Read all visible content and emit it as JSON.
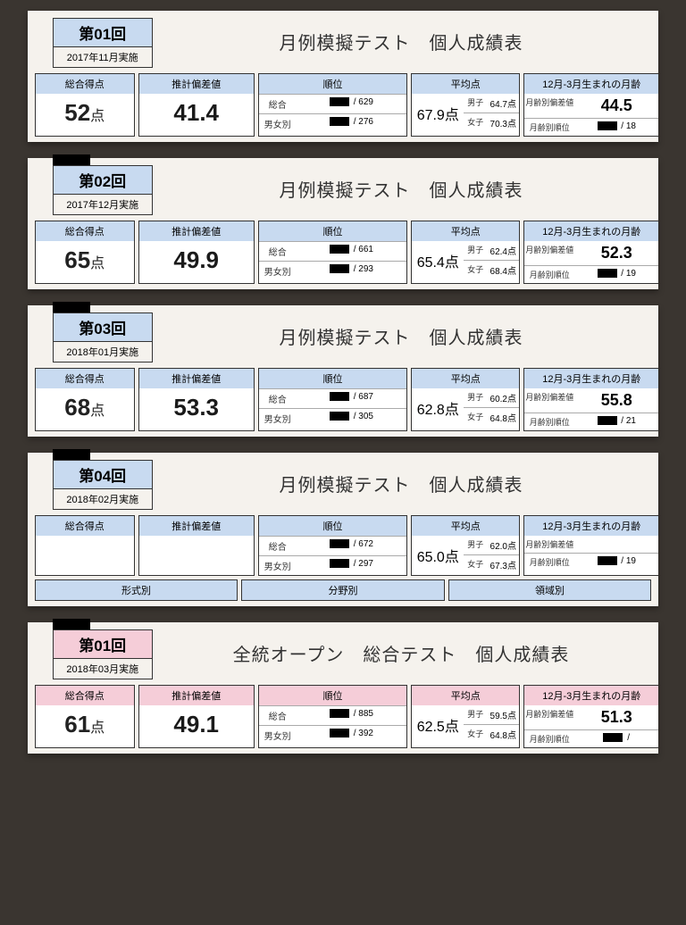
{
  "colors": {
    "blue": "#c8daf0",
    "pink": "#f5cdd8",
    "paper": "#f5f2ed",
    "bg": "#3a3530"
  },
  "labels": {
    "total_score": "総合得点",
    "deviation": "推計偏差値",
    "rank": "順位",
    "avg": "平均点",
    "month_born": "12月-3月生まれの月齢",
    "overall": "総合",
    "gender": "男女別",
    "boys": "男子",
    "girls": "女子",
    "month_dev": "月齢別偏差値",
    "month_rank": "月齢別順位",
    "format": "形式別",
    "field": "分野別",
    "area": "領域別",
    "pt_unit": "点"
  },
  "sheets": [
    {
      "theme": "blue",
      "session": "第01回",
      "date": "2017年11月実施",
      "title": "月例模擬テスト　個人成績表",
      "score": "52",
      "dev": "41.4",
      "rank_total": "629",
      "rank_gender": "276",
      "avg_main": "67.9点",
      "avg_boys": "64.7点",
      "avg_girls": "70.3点",
      "month_dev": "44.5",
      "month_rank_total": "18",
      "show_redact": false,
      "show_subrow": false
    },
    {
      "theme": "blue",
      "session": "第02回",
      "date": "2017年12月実施",
      "title": "月例模擬テスト　個人成績表",
      "score": "65",
      "dev": "49.9",
      "rank_total": "661",
      "rank_gender": "293",
      "avg_main": "65.4点",
      "avg_boys": "62.4点",
      "avg_girls": "68.4点",
      "month_dev": "52.3",
      "month_rank_total": "19",
      "show_redact": true,
      "show_subrow": false
    },
    {
      "theme": "blue",
      "session": "第03回",
      "date": "2018年01月実施",
      "title": "月例模擬テスト　個人成績表",
      "score": "68",
      "dev": "53.3",
      "rank_total": "687",
      "rank_gender": "305",
      "avg_main": "62.8点",
      "avg_boys": "60.2点",
      "avg_girls": "64.8点",
      "month_dev": "55.8",
      "month_rank_total": "21",
      "show_redact": true,
      "show_subrow": false
    },
    {
      "theme": "blue",
      "session": "第04回",
      "date": "2018年02月実施",
      "title": "月例模擬テスト　個人成績表",
      "score": "",
      "dev": "",
      "rank_total": "672",
      "rank_gender": "297",
      "avg_main": "65.0点",
      "avg_boys": "62.0点",
      "avg_girls": "67.3点",
      "month_dev": "",
      "month_rank_total": "19",
      "show_redact": true,
      "show_subrow": true
    },
    {
      "theme": "pink",
      "session": "第01回",
      "date": "2018年03月実施",
      "title": "全統オープン　総合テスト　個人成績表",
      "score": "61",
      "dev": "49.1",
      "rank_total": "885",
      "rank_gender": "392",
      "avg_main": "62.5点",
      "avg_boys": "59.5点",
      "avg_girls": "64.8点",
      "month_dev": "51.3",
      "month_rank_total": "",
      "show_redact": true,
      "show_subrow": false
    }
  ]
}
